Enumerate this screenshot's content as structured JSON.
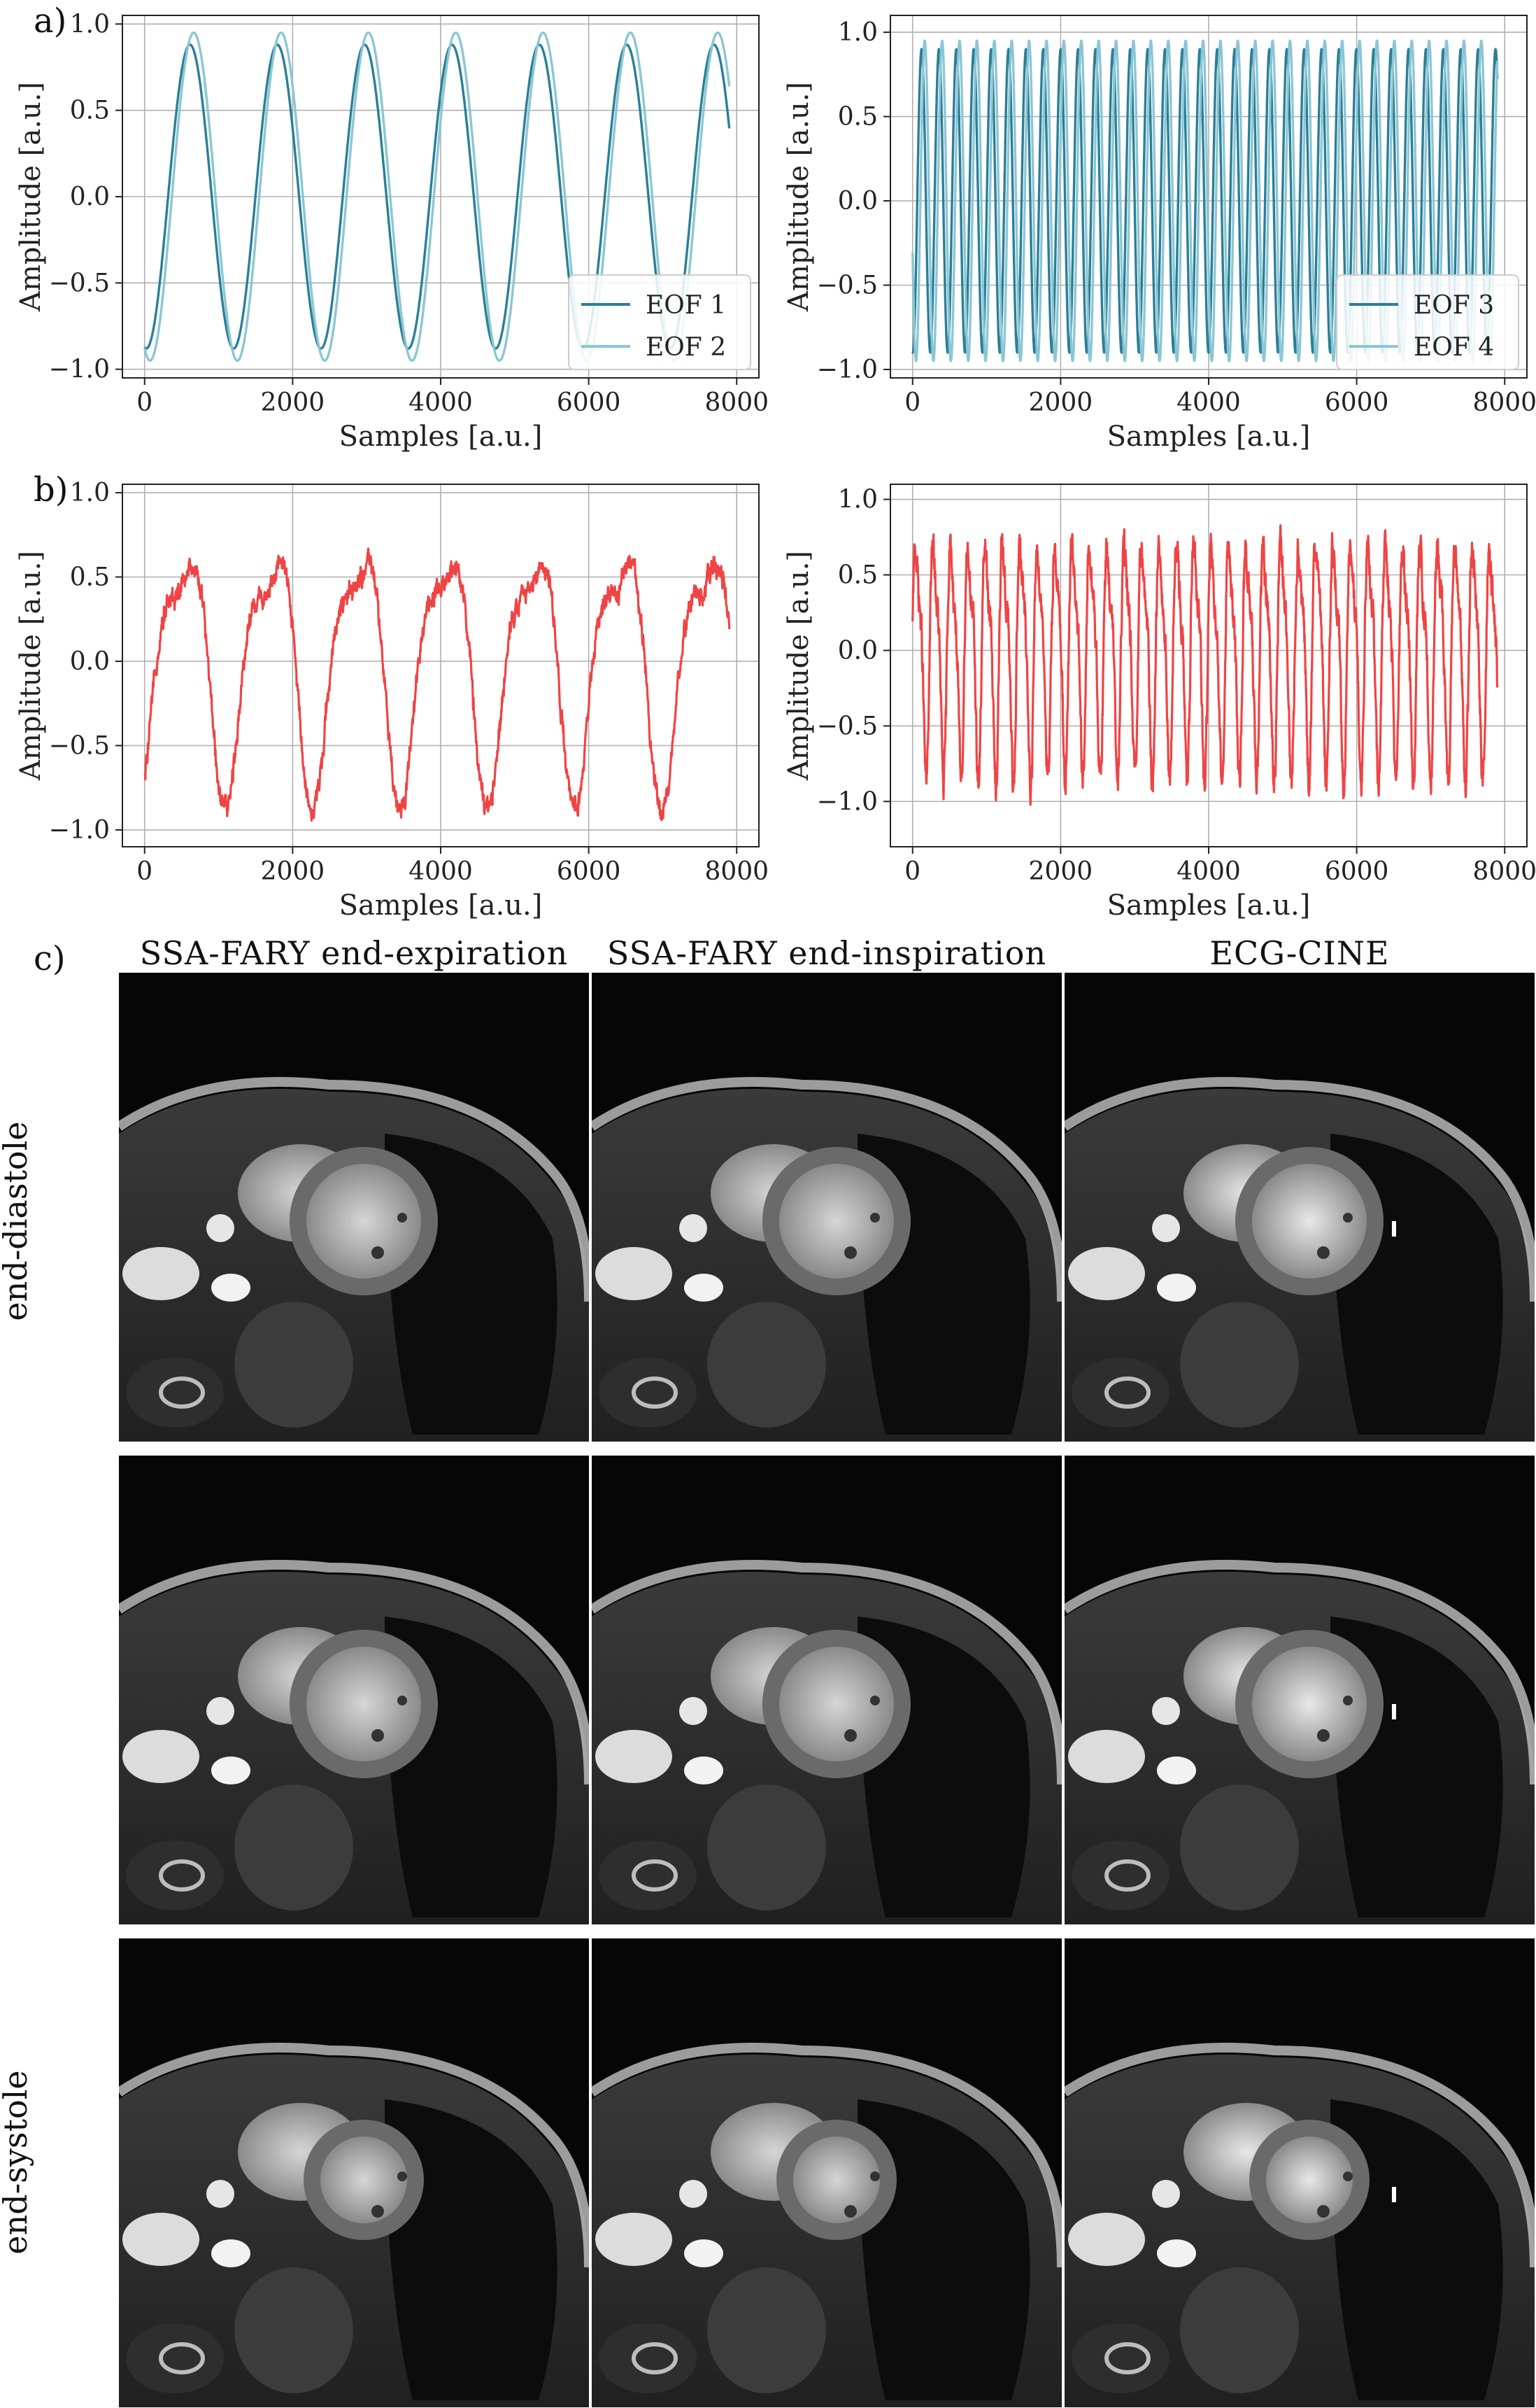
{
  "panels": {
    "a_label": "a)",
    "b_label": "b)",
    "c_label": "c)"
  },
  "colors": {
    "eof1": "#2a7f98",
    "eof2": "#8cc6d4",
    "eof3": "#2a7f98",
    "eof4": "#8cc6d4",
    "signal": "#ef4444",
    "grid": "#b0b0b0"
  },
  "chart_data": [
    {
      "id": "a_left",
      "type": "line",
      "xlabel": "Samples [a.u.]",
      "ylabel": "Amplitude [a.u.]",
      "xlim": [
        -300,
        8300
      ],
      "ylim": [
        -1.05,
        1.05
      ],
      "xticks": [
        0,
        2000,
        4000,
        6000,
        8000
      ],
      "yticks": [
        -1.0,
        -0.5,
        0.0,
        0.5,
        1.0
      ],
      "ytick_labels": [
        "−1.0",
        "−0.5",
        "0.0",
        "0.5",
        "1.0"
      ],
      "grid": true,
      "legend": "lower-right",
      "series": [
        {
          "name": "EOF 1",
          "color_key": "eof1",
          "kind": "sine",
          "x_start": 0,
          "x_end": 7900,
          "period": 1180,
          "phase": -0.12,
          "amplitude": 0.88
        },
        {
          "name": "EOF 2",
          "color_key": "eof2",
          "kind": "cosine",
          "x_start": 0,
          "x_end": 7900,
          "period": 1180,
          "phase": 2.75,
          "amplitude": 0.95
        }
      ]
    },
    {
      "id": "a_right",
      "type": "line",
      "xlabel": "Samples [a.u.]",
      "ylabel": "Amplitude [a.u.]",
      "xlim": [
        -300,
        8300
      ],
      "ylim": [
        -1.05,
        1.1
      ],
      "xticks": [
        0,
        2000,
        4000,
        6000,
        8000
      ],
      "yticks": [
        -1.0,
        -0.5,
        0.0,
        0.5,
        1.0
      ],
      "ytick_labels": [
        "−1.0",
        "−0.5",
        "0.0",
        "0.5",
        "1.0"
      ],
      "grid": true,
      "legend": "lower-right",
      "series": [
        {
          "name": "EOF 3",
          "color_key": "eof3",
          "kind": "sine",
          "x_start": 0,
          "x_end": 7900,
          "period": 235,
          "phase": -0.1,
          "amplitude": 0.9
        },
        {
          "name": "EOF 4",
          "color_key": "eof4",
          "kind": "cosine",
          "x_start": 0,
          "x_end": 7900,
          "period": 235,
          "phase": 1.9,
          "amplitude": 0.95
        }
      ]
    },
    {
      "id": "b_left",
      "type": "line",
      "xlabel": "Samples [a.u.]",
      "ylabel": "Amplitude [a.u.]",
      "xlim": [
        -300,
        8300
      ],
      "ylim": [
        -1.1,
        1.05
      ],
      "xticks": [
        0,
        2000,
        4000,
        6000,
        8000
      ],
      "yticks": [
        -1.0,
        -0.5,
        0.0,
        0.5,
        1.0
      ],
      "ytick_labels": [
        "−1.0",
        "−0.5",
        "0.0",
        "0.5",
        "1.0"
      ],
      "grid": true,
      "series": [
        {
          "name": "",
          "color_key": "signal",
          "kind": "resp",
          "x_start": 0,
          "x_end": 7900,
          "period": 1180,
          "amplitude": 0.8,
          "noise": 0.12
        }
      ]
    },
    {
      "id": "b_right",
      "type": "line",
      "xlabel": "Samples [a.u.]",
      "ylabel": "Amplitude [a.u.]",
      "xlim": [
        -300,
        8300
      ],
      "ylim": [
        -1.3,
        1.1
      ],
      "xticks": [
        0,
        2000,
        4000,
        6000,
        8000
      ],
      "yticks": [
        -1.0,
        -0.5,
        0.0,
        0.5,
        1.0
      ],
      "ytick_labels": [
        "−1.0",
        "−0.5",
        "0.0",
        "0.5",
        "1.0"
      ],
      "grid": true,
      "series": [
        {
          "name": "",
          "color_key": "signal",
          "kind": "cardiac",
          "x_start": 0,
          "x_end": 7900,
          "period": 235,
          "amplitude": 0.7,
          "noise": 0.22
        }
      ]
    }
  ],
  "images": {
    "col_titles": [
      "SSA-FARY end-expiration",
      "SSA-FARY end-inspiration",
      "ECG-CINE"
    ],
    "row_labels": [
      "end-diastole",
      "",
      "end-systole"
    ]
  }
}
